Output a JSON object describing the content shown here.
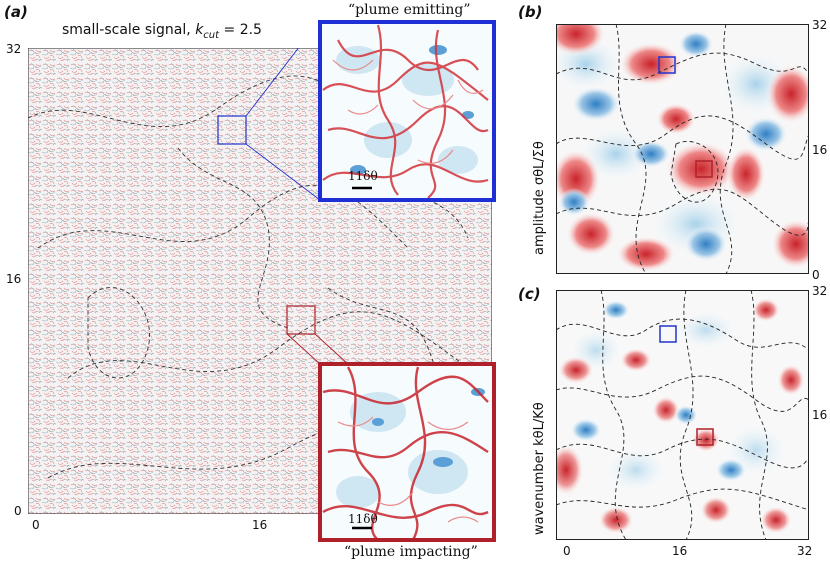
{
  "panel_a": {
    "label": "(a)",
    "title": "small-scale signal, k_cut = 2.5",
    "yticks": [
      "0",
      "16",
      "32"
    ],
    "xticks": [
      "0",
      "16"
    ],
    "inset_top": {
      "caption": "“plume emitting”",
      "scale_label": "11δθ",
      "frame_color": "#1f2fd6"
    },
    "inset_bottom": {
      "caption": "“plume impacting”",
      "scale_label": "11δθ",
      "frame_color": "#b0202a"
    }
  },
  "panel_b": {
    "label": "(b)",
    "ylabel": "amplitude  σθL/Σθ",
    "yticks_right": [
      "32",
      "16",
      "0"
    ]
  },
  "panel_c": {
    "label": "(c)",
    "ylabel": "wavenumber  kθL/Kθ",
    "yticks_right": [
      "32",
      "16"
    ],
    "xticks": [
      "0",
      "16",
      "32"
    ]
  },
  "colors": {
    "positive": "#c8242b",
    "negative": "#2f7fc4",
    "neutral": "#ffffff",
    "box_blue": "#2233cc",
    "box_red": "#b0202a"
  }
}
